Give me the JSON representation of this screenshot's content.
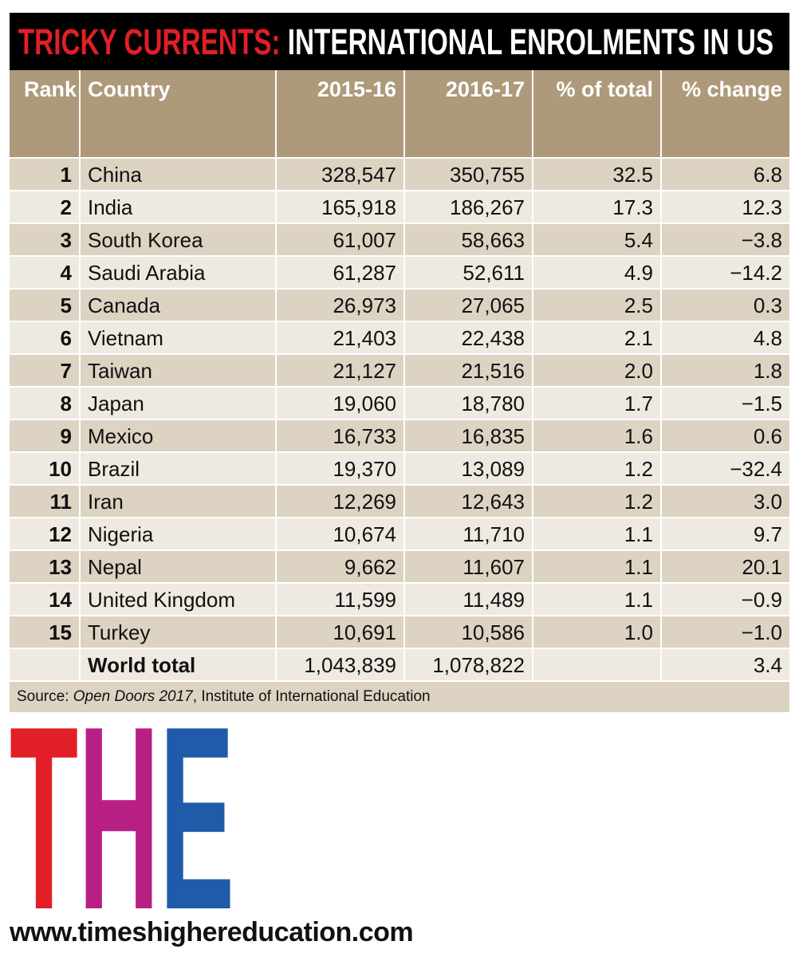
{
  "title": {
    "highlight": "TRICKY CURRENTS:",
    "rest": " INTERNATIONAL ENROLMENTS IN US"
  },
  "colors": {
    "header_bg": "#ae9a7a",
    "row_dark": "#ddd3c2",
    "row_light": "#efeae1",
    "title_red": "#e21e26",
    "logo_red": "#e21e26",
    "logo_magenta": "#b81f84",
    "logo_blue": "#1f5ba8"
  },
  "chart_data": {
    "type": "table",
    "columns": [
      "Rank",
      "Country",
      "2015-16",
      "2016-17",
      "% of total",
      "% change"
    ],
    "rows": [
      {
        "rank": "1",
        "country": "China",
        "y2015": "328,547",
        "y2016": "350,755",
        "share": "32.5",
        "change": "6.8"
      },
      {
        "rank": "2",
        "country": "India",
        "y2015": "165,918",
        "y2016": "186,267",
        "share": "17.3",
        "change": "12.3"
      },
      {
        "rank": "3",
        "country": "South Korea",
        "y2015": "61,007",
        "y2016": "58,663",
        "share": "5.4",
        "change": "−3.8"
      },
      {
        "rank": "4",
        "country": "Saudi Arabia",
        "y2015": "61,287",
        "y2016": "52,611",
        "share": "4.9",
        "change": "−14.2"
      },
      {
        "rank": "5",
        "country": "Canada",
        "y2015": "26,973",
        "y2016": "27,065",
        "share": "2.5",
        "change": "0.3"
      },
      {
        "rank": "6",
        "country": "Vietnam",
        "y2015": "21,403",
        "y2016": "22,438",
        "share": "2.1",
        "change": "4.8"
      },
      {
        "rank": "7",
        "country": "Taiwan",
        "y2015": "21,127",
        "y2016": "21,516",
        "share": "2.0",
        "change": "1.8"
      },
      {
        "rank": "8",
        "country": "Japan",
        "y2015": "19,060",
        "y2016": "18,780",
        "share": "1.7",
        "change": "−1.5"
      },
      {
        "rank": "9",
        "country": "Mexico",
        "y2015": "16,733",
        "y2016": "16,835",
        "share": "1.6",
        "change": "0.6"
      },
      {
        "rank": "10",
        "country": "Brazil",
        "y2015": "19,370",
        "y2016": "13,089",
        "share": "1.2",
        "change": "−32.4"
      },
      {
        "rank": "11",
        "country": "Iran",
        "y2015": "12,269",
        "y2016": "12,643",
        "share": "1.2",
        "change": "3.0"
      },
      {
        "rank": "12",
        "country": "Nigeria",
        "y2015": "10,674",
        "y2016": "11,710",
        "share": "1.1",
        "change": "9.7"
      },
      {
        "rank": "13",
        "country": "Nepal",
        "y2015": "9,662",
        "y2016": "11,607",
        "share": "1.1",
        "change": "20.1"
      },
      {
        "rank": "14",
        "country": "United Kingdom",
        "y2015": "11,599",
        "y2016": "11,489",
        "share": "1.1",
        "change": "−0.9"
      },
      {
        "rank": "15",
        "country": "Turkey",
        "y2015": "10,691",
        "y2016": "10,586",
        "share": "1.0",
        "change": "−1.0"
      }
    ],
    "total": {
      "rank": "",
      "country": "World total",
      "y2015": "1,043,839",
      "y2016": "1,078,822",
      "share": "",
      "change": "3.4"
    }
  },
  "source": {
    "prefix": "Source: ",
    "italic": "Open Doors 2017",
    "rest": ", Institute of International Education"
  },
  "logo": {
    "text": "THE"
  },
  "url": "www.timeshighereducation.com"
}
